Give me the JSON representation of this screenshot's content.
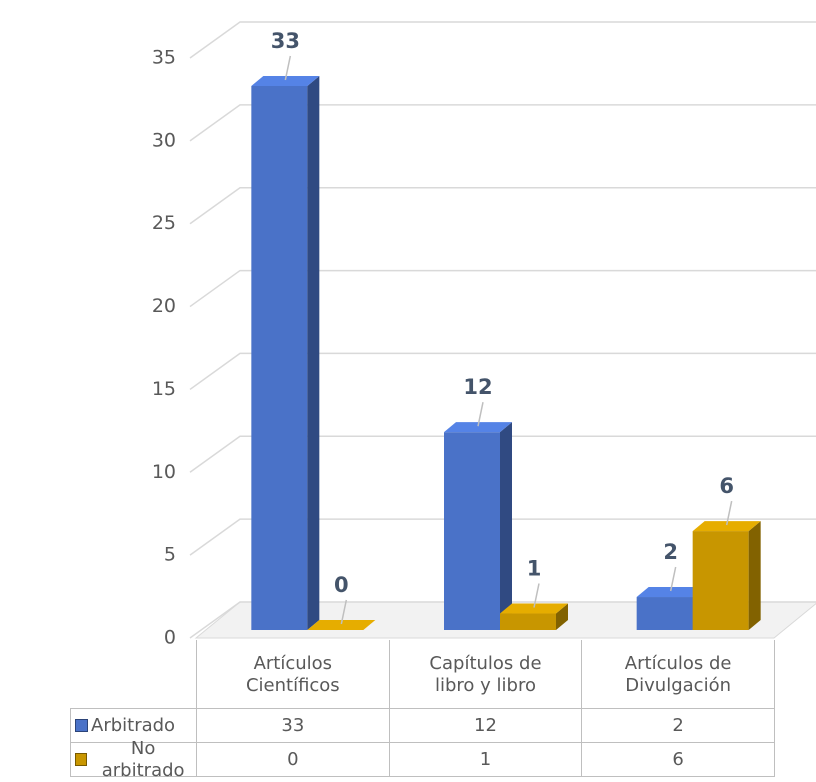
{
  "chart_data": {
    "type": "bar3d",
    "categories": [
      "Artículos Científicos",
      "Capítulos de libro y libro",
      "Artículos de Divulgación"
    ],
    "series": [
      {
        "name": "Arbitrado",
        "color": "#4a72c8",
        "values": [
          33,
          12,
          2
        ]
      },
      {
        "name": "No arbitrado",
        "color": "#c89600",
        "values": [
          0,
          1,
          6
        ]
      }
    ],
    "ylim": [
      0,
      35
    ],
    "yticks": [
      0,
      5,
      10,
      15,
      20,
      25,
      30,
      35
    ],
    "grid": true,
    "data_table": true
  }
}
